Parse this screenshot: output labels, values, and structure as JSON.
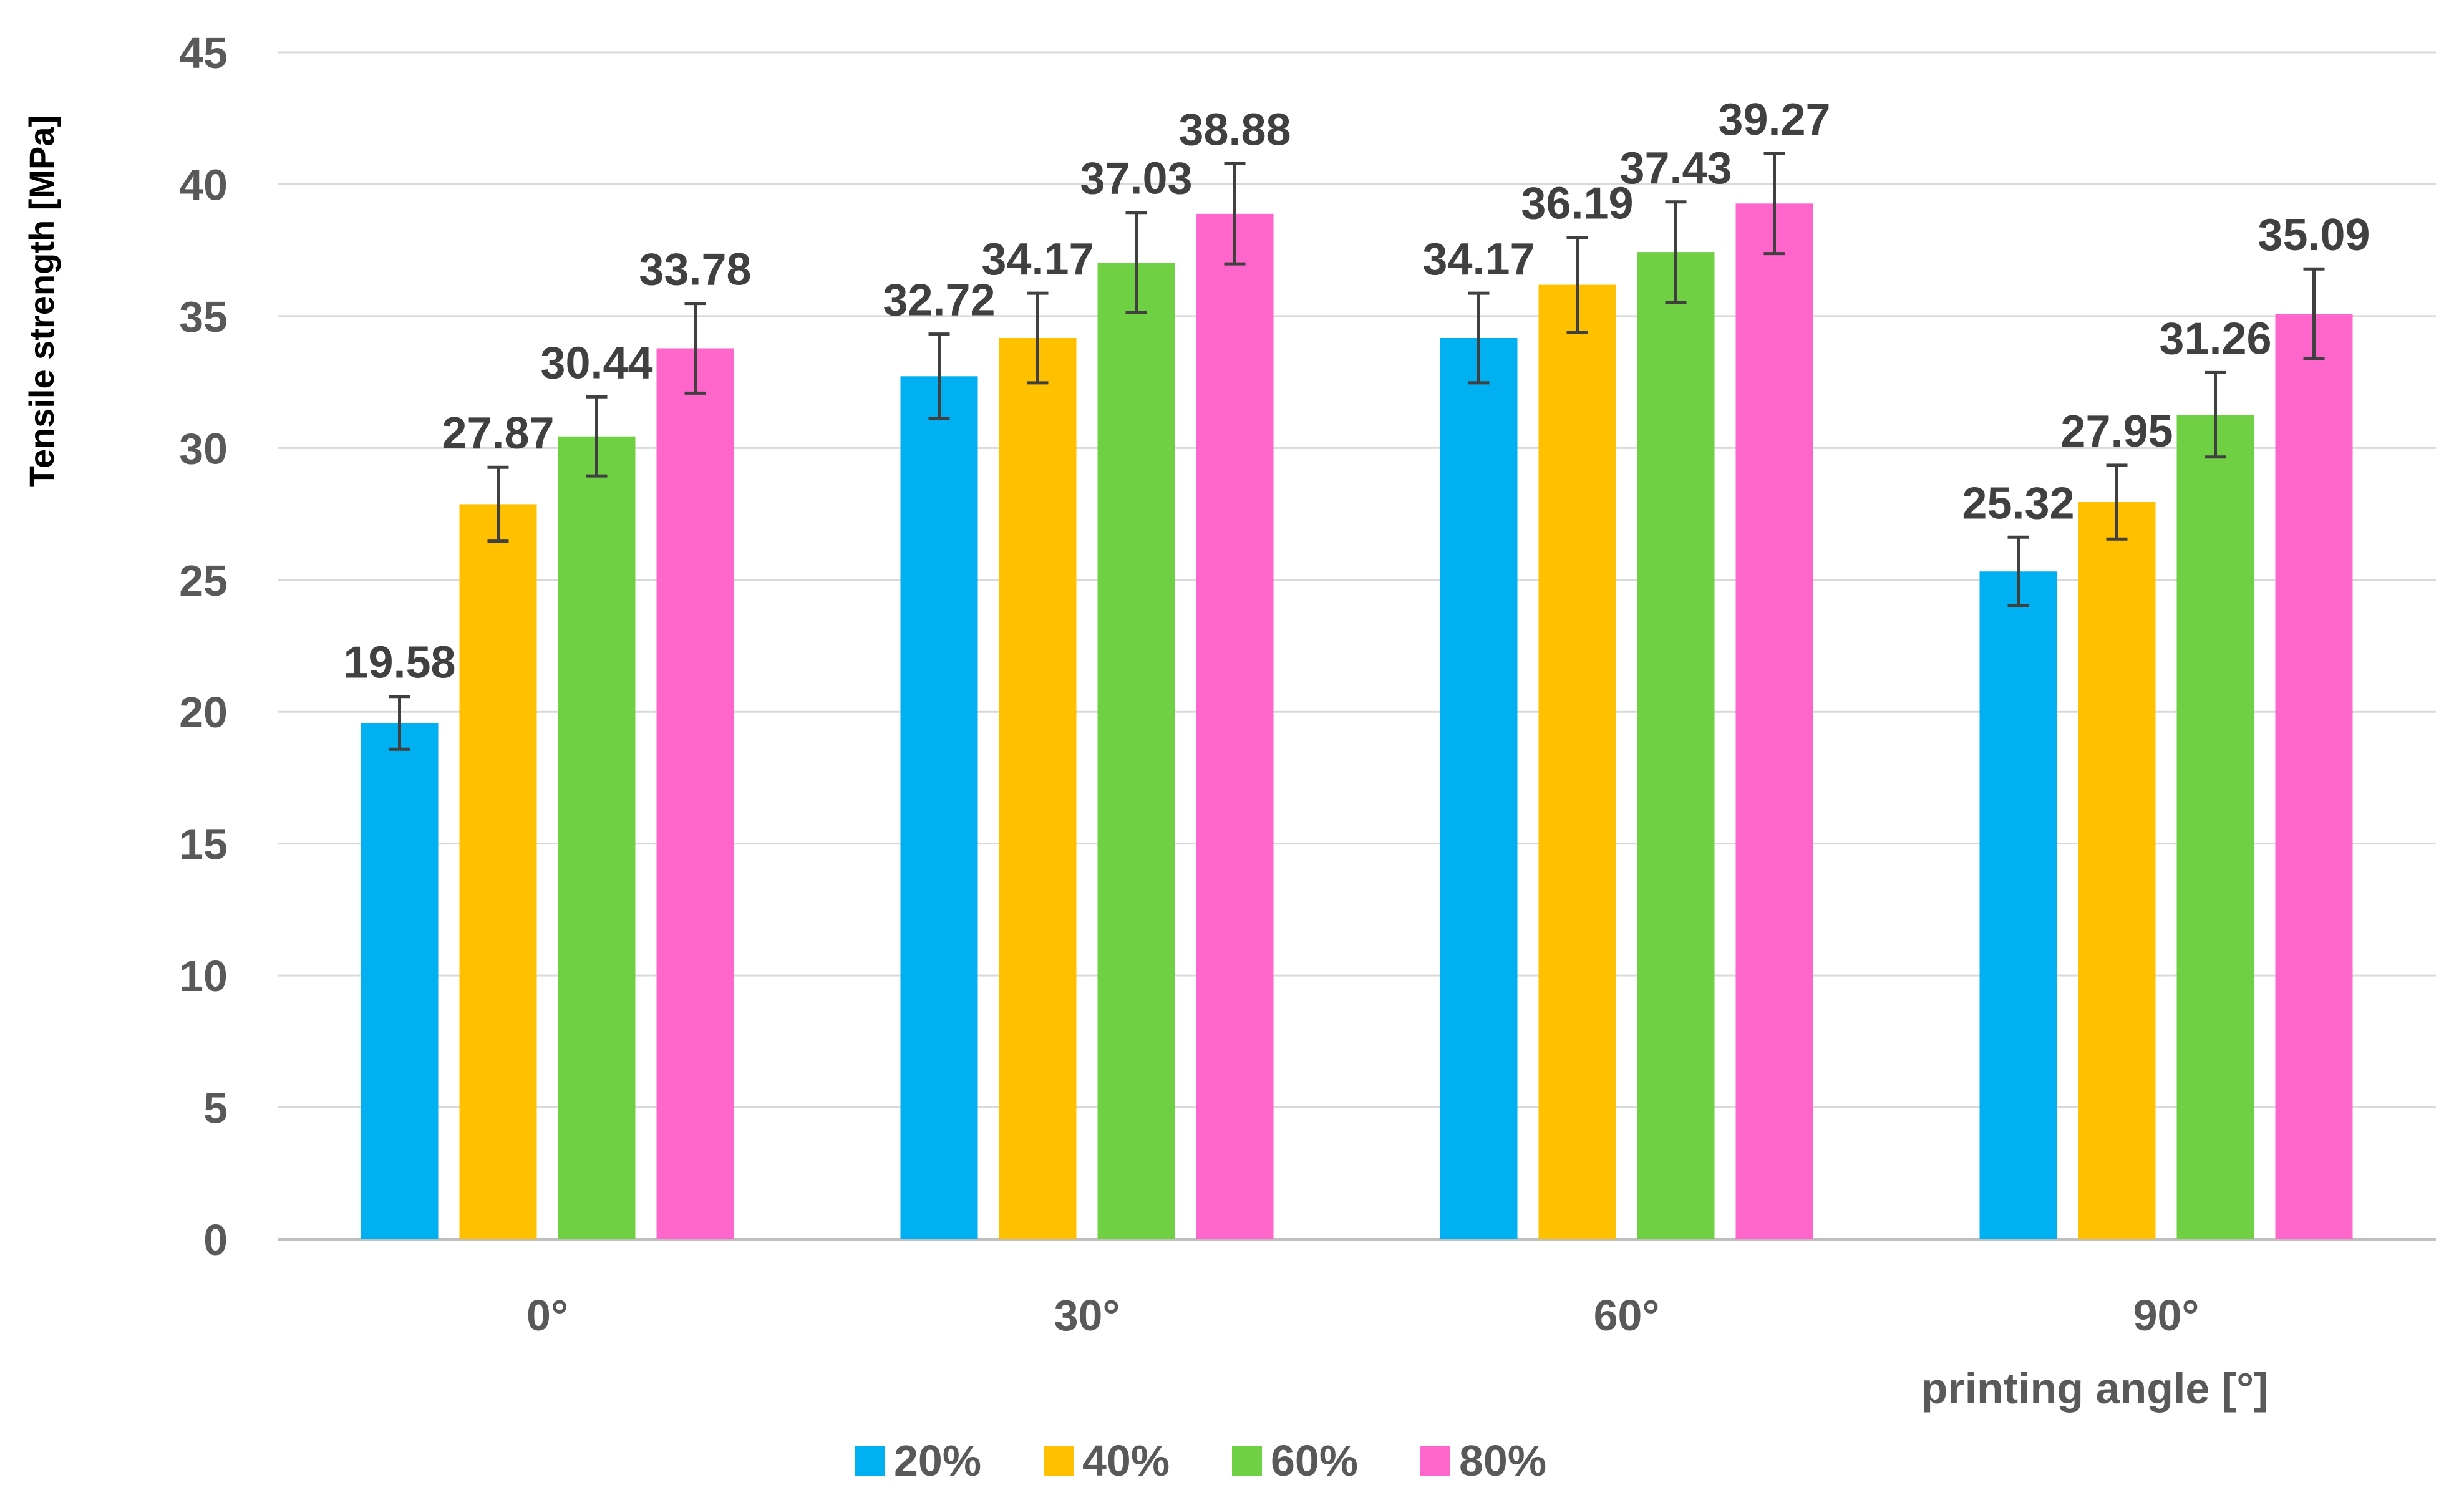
{
  "chart_data": {
    "type": "bar",
    "title": "",
    "xlabel": "printing angle [°]",
    "ylabel": "Tensile strength [MPa]",
    "ylim": [
      0,
      45
    ],
    "yticks": [
      "0",
      "5",
      "10",
      "15",
      "20",
      "25",
      "30",
      "35",
      "40",
      "45"
    ],
    "categories": [
      "0°",
      "30°",
      "60°",
      "90°"
    ],
    "grid": true,
    "legend_position": "bottom",
    "series": [
      {
        "name": "20%",
        "color": "#00b0f0",
        "values": [
          19.58,
          32.72,
          34.17,
          25.32
        ],
        "labels": [
          "19.58",
          "32.72",
          "34.17",
          "25.32"
        ],
        "errors": [
          1.0,
          1.6,
          1.7,
          1.3
        ]
      },
      {
        "name": "40%",
        "color": "#ffc000",
        "values": [
          27.87,
          34.17,
          36.19,
          27.95
        ],
        "labels": [
          "27.87",
          "34.17",
          "36.19",
          "27.95"
        ],
        "errors": [
          1.4,
          1.7,
          1.8,
          1.4
        ]
      },
      {
        "name": "60%",
        "color": "#70d044",
        "values": [
          30.44,
          37.03,
          37.43,
          31.26
        ],
        "labels": [
          "30.44",
          "37.03",
          "37.43",
          "31.26"
        ],
        "errors": [
          1.5,
          1.9,
          1.9,
          1.6
        ]
      },
      {
        "name": "80%",
        "color": "#ff66cc",
        "values": [
          33.78,
          38.88,
          39.27,
          35.09
        ],
        "labels": [
          "33.78",
          "38.88",
          "39.27",
          "35.09"
        ],
        "errors": [
          1.7,
          1.9,
          1.9,
          1.7
        ]
      }
    ]
  }
}
